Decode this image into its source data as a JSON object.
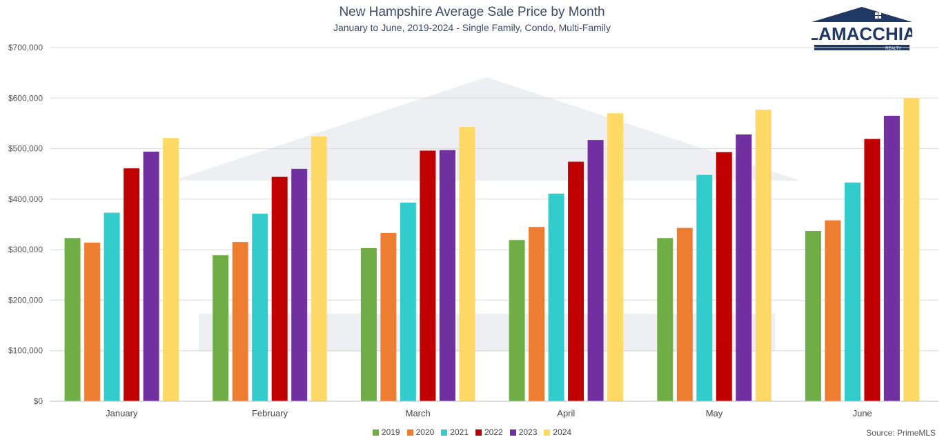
{
  "chart_data": {
    "type": "bar",
    "title": "New Hampshire Average Sale Price by Month",
    "subtitle": "January to June, 2019-2024 - Single Family, Condo, Multi-Family",
    "categories": [
      "January",
      "February",
      "March",
      "April",
      "May",
      "June"
    ],
    "series": [
      {
        "name": "2019",
        "color": "#70ad47",
        "values": [
          323000,
          289000,
          303000,
          319000,
          323000,
          337000
        ]
      },
      {
        "name": "2020",
        "color": "#ed7d31",
        "values": [
          314000,
          315000,
          333000,
          345000,
          343000,
          358000
        ]
      },
      {
        "name": "2021",
        "color": "#33cccc",
        "values": [
          373000,
          371000,
          393000,
          411000,
          448000,
          433000
        ]
      },
      {
        "name": "2022",
        "color": "#c00000",
        "values": [
          461000,
          444000,
          496000,
          474000,
          493000,
          519000
        ]
      },
      {
        "name": "2023",
        "color": "#7030a0",
        "values": [
          494000,
          460000,
          497000,
          517000,
          528000,
          565000
        ]
      },
      {
        "name": "2024",
        "color": "#ffd966",
        "values": [
          521000,
          524000,
          543000,
          570000,
          577000,
          600000
        ]
      }
    ],
    "ylim": [
      0,
      700000
    ],
    "ytick_labels": [
      "$0",
      "$100,000",
      "$200,000",
      "$300,000",
      "$400,000",
      "$500,000",
      "$600,000",
      "$700,000"
    ],
    "grid": true,
    "legend_position": "bottom"
  },
  "source": "Source: PrimeMLS",
  "logo": {
    "brand": "LAMACCHIA",
    "tagline": "REALTY",
    "color": "#1f3864"
  }
}
